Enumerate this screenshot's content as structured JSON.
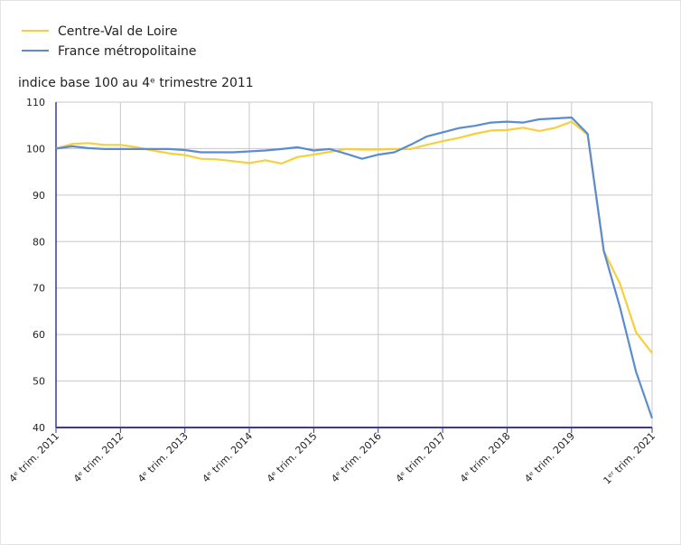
{
  "chart_data": {
    "type": "line",
    "subtitle": "indice base 100 au 4ᵉ trimestre 2011",
    "categories": [
      "4ᵉ trim. 2011",
      null,
      null,
      null,
      "4ᵉ trim. 2012",
      null,
      null,
      null,
      "4ᵉ trim. 2013",
      null,
      null,
      null,
      "4ᵉ trim. 2014",
      null,
      null,
      null,
      "4ᵉ trim. 2015",
      null,
      null,
      null,
      "4ᵉ trim. 2016",
      null,
      null,
      null,
      "4ᵉ trim. 2017",
      null,
      null,
      null,
      "4ᵉ trim. 2018",
      null,
      null,
      null,
      "4ᵉ trim. 2019",
      null,
      null,
      null,
      null,
      "1ᵉʳ trim. 2021"
    ],
    "series": [
      {
        "name": "Centre-Val de Loire",
        "color": "#f7cf3b",
        "values": [
          100,
          101,
          101.2,
          100.8,
          100.8,
          100.3,
          99.6,
          99,
          98.6,
          97.8,
          97.7,
          97.3,
          96.9,
          97.5,
          96.8,
          98.2,
          98.7,
          99.3,
          99.9,
          99.8,
          99.8,
          99.9,
          99.9,
          100.8,
          101.6,
          102.3,
          103.2,
          103.9,
          104,
          104.5,
          103.8,
          104.5,
          105.8,
          103,
          78,
          71,
          60.5,
          56
        ]
      },
      {
        "name": "France métropolitaine",
        "color": "#5b8bd0",
        "values": [
          100,
          100.5,
          100.1,
          99.9,
          99.9,
          99.9,
          99.9,
          99.9,
          99.7,
          99.2,
          99.2,
          99.2,
          99.4,
          99.6,
          99.9,
          100.3,
          99.6,
          99.9,
          98.9,
          97.8,
          98.7,
          99.2,
          100.8,
          102.6,
          103.5,
          104.4,
          104.9,
          105.6,
          105.8,
          105.6,
          106.3,
          106.5,
          106.7,
          103.2,
          78,
          66,
          52,
          42
        ]
      }
    ],
    "ylim": [
      40,
      110
    ],
    "yticks": [
      40,
      50,
      60,
      70,
      80,
      90,
      100,
      110
    ],
    "grid": true,
    "legend": "top-left"
  }
}
